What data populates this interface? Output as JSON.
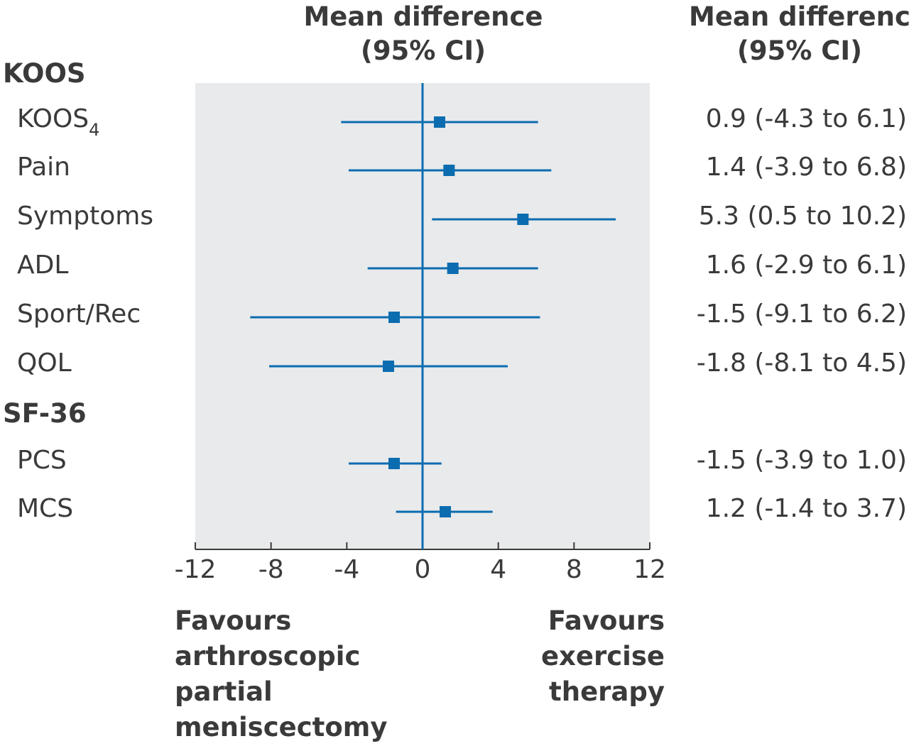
{
  "headers": {
    "plot_header_line1": "Mean difference",
    "plot_header_line2": "(95% CI)",
    "value_header_line1": "Mean difference",
    "value_header_line2": "(95% CI)"
  },
  "groups": {
    "koos": "KOOS",
    "sf36": "SF-36"
  },
  "favours": {
    "left": [
      "Favours",
      "arthroscopic",
      "partial",
      "meniscectomy"
    ],
    "right": [
      "Favours",
      "exercise",
      "therapy"
    ]
  },
  "colors": {
    "marker": "#0b6cb0",
    "plot_bg": "#e8eaeb",
    "axis": "#3a3a3a",
    "text": "#3a3a3a"
  },
  "chart_data": {
    "type": "forest",
    "xlim": [
      -12,
      12
    ],
    "xticks": [
      -12,
      -8,
      -4,
      0,
      4,
      8,
      12
    ],
    "reference_line": 0,
    "rows": [
      {
        "group": "KOOS",
        "label": "KOOS",
        "label_sub": "4",
        "estimate": 0.9,
        "lower": -4.3,
        "upper": 6.1,
        "text": "0.9 (-4.3 to 6.1)"
      },
      {
        "group": "KOOS",
        "label": "Pain",
        "label_sub": "",
        "estimate": 1.4,
        "lower": -3.9,
        "upper": 6.8,
        "text": "1.4 (-3.9 to 6.8)"
      },
      {
        "group": "KOOS",
        "label": "Symptoms",
        "label_sub": "",
        "estimate": 5.3,
        "lower": 0.5,
        "upper": 10.2,
        "text": "5.3 (0.5 to 10.2)"
      },
      {
        "group": "KOOS",
        "label": "ADL",
        "label_sub": "",
        "estimate": 1.6,
        "lower": -2.9,
        "upper": 6.1,
        "text": "1.6 (-2.9 to 6.1)"
      },
      {
        "group": "KOOS",
        "label": "Sport/Rec",
        "label_sub": "",
        "estimate": -1.5,
        "lower": -9.1,
        "upper": 6.2,
        "text": "-1.5 (-9.1 to 6.2)"
      },
      {
        "group": "KOOS",
        "label": "QOL",
        "label_sub": "",
        "estimate": -1.8,
        "lower": -8.1,
        "upper": 4.5,
        "text": "-1.8 (-8.1 to 4.5)"
      },
      {
        "group": "SF-36",
        "label": "PCS",
        "label_sub": "",
        "estimate": -1.5,
        "lower": -3.9,
        "upper": 1.0,
        "text": "-1.5 (-3.9 to 1.0)"
      },
      {
        "group": "SF-36",
        "label": "MCS",
        "label_sub": "",
        "estimate": 1.2,
        "lower": -1.4,
        "upper": 3.7,
        "text": "1.2 (-1.4 to 3.7)"
      }
    ]
  }
}
